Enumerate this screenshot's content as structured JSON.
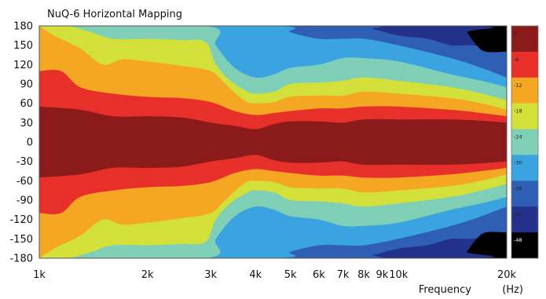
{
  "chart_data": {
    "type": "heatmap",
    "title": "NuQ-6 Horizontal Mapping",
    "xlabel": "Frequency",
    "xlabel_unit": "(Hz)",
    "x_scale": "log",
    "xlim": [
      1000,
      20000
    ],
    "ylim": [
      -180,
      180
    ],
    "x_ticks": [
      {
        "value": 1000,
        "label": "1k"
      },
      {
        "value": 2000,
        "label": "2k"
      },
      {
        "value": 3000,
        "label": "3k"
      },
      {
        "value": 4000,
        "label": "4k"
      },
      {
        "value": 5000,
        "label": "5k"
      },
      {
        "value": 6000,
        "label": "6k"
      },
      {
        "value": 7000,
        "label": "7k"
      },
      {
        "value": 8000,
        "label": "8k"
      },
      {
        "value": 9000,
        "label": "9k"
      },
      {
        "value": 10000,
        "label": "10k"
      },
      {
        "value": 20000,
        "label": "20k"
      }
    ],
    "y_ticks": [
      180,
      150,
      120,
      90,
      60,
      30,
      0,
      -30,
      -60,
      -90,
      -120,
      -150,
      -180
    ],
    "colorbar": [
      {
        "label": "0",
        "color": "#8b1a1a"
      },
      {
        "label": "-6",
        "color": "#e8302a"
      },
      {
        "label": "-12",
        "color": "#f5a623"
      },
      {
        "label": "-18",
        "color": "#d4e03a"
      },
      {
        "label": "-24",
        "color": "#7fcfb7"
      },
      {
        "label": "-30",
        "color": "#3aa3e0"
      },
      {
        "label": "-36",
        "color": "#2f5fb4"
      },
      {
        "label": "-42",
        "color": "#23318a"
      },
      {
        "label": "-48",
        "color": "#000000"
      }
    ],
    "contours": [
      {
        "level": -6,
        "color": "#e8302a",
        "points": [
          [
            1000,
            55
          ],
          [
            1300,
            50
          ],
          [
            1600,
            40
          ],
          [
            2000,
            40
          ],
          [
            2500,
            38
          ],
          [
            3000,
            30
          ],
          [
            3500,
            25
          ],
          [
            4000,
            20
          ],
          [
            4500,
            28
          ],
          [
            5000,
            32
          ],
          [
            6000,
            32
          ],
          [
            7000,
            30
          ],
          [
            8000,
            35
          ],
          [
            10000,
            35
          ],
          [
            14000,
            35
          ],
          [
            17000,
            33
          ],
          [
            20000,
            30
          ]
        ]
      },
      {
        "level": -12,
        "color": "#f5a623",
        "points": [
          [
            1000,
            110
          ],
          [
            1150,
            110
          ],
          [
            1300,
            85
          ],
          [
            1600,
            75
          ],
          [
            2000,
            70
          ],
          [
            2500,
            68
          ],
          [
            3000,
            62
          ],
          [
            3500,
            48
          ],
          [
            4000,
            42
          ],
          [
            4500,
            45
          ],
          [
            5000,
            48
          ],
          [
            6000,
            52
          ],
          [
            7000,
            52
          ],
          [
            8000,
            55
          ],
          [
            10000,
            55
          ],
          [
            14000,
            50
          ],
          [
            17000,
            45
          ],
          [
            20000,
            40
          ]
        ]
      },
      {
        "level": -18,
        "color": "#d4e03a",
        "points": [
          [
            1000,
            180
          ],
          [
            1100,
            165
          ],
          [
            1300,
            145
          ],
          [
            1500,
            120
          ],
          [
            1700,
            128
          ],
          [
            2000,
            125
          ],
          [
            2500,
            118
          ],
          [
            3000,
            110
          ],
          [
            3300,
            90
          ],
          [
            3700,
            65
          ],
          [
            4000,
            60
          ],
          [
            4500,
            62
          ],
          [
            5000,
            70
          ],
          [
            6000,
            72
          ],
          [
            7000,
            72
          ],
          [
            8000,
            78
          ],
          [
            10000,
            75
          ],
          [
            14000,
            68
          ],
          [
            17000,
            60
          ],
          [
            20000,
            50
          ]
        ]
      },
      {
        "level": -24,
        "color": "#7fcfb7",
        "points": [
          [
            1000,
            180
          ],
          [
            1200,
            180
          ],
          [
            1400,
            170
          ],
          [
            1600,
            160
          ],
          [
            2000,
            160
          ],
          [
            2500,
            158
          ],
          [
            2900,
            155
          ],
          [
            3100,
            120
          ],
          [
            3400,
            95
          ],
          [
            3800,
            78
          ],
          [
            4000,
            75
          ],
          [
            4500,
            78
          ],
          [
            5000,
            90
          ],
          [
            6000,
            92
          ],
          [
            7000,
            95
          ],
          [
            8000,
            100
          ],
          [
            10000,
            95
          ],
          [
            14000,
            85
          ],
          [
            17000,
            75
          ],
          [
            20000,
            65
          ]
        ]
      },
      {
        "level": -30,
        "color": "#3aa3e0",
        "points": [
          [
            1000,
            180
          ],
          [
            2900,
            180
          ],
          [
            3100,
            150
          ],
          [
            3500,
            115
          ],
          [
            4000,
            100
          ],
          [
            4500,
            105
          ],
          [
            5000,
            115
          ],
          [
            6000,
            120
          ],
          [
            7000,
            130
          ],
          [
            8000,
            130
          ],
          [
            10000,
            125
          ],
          [
            14000,
            105
          ],
          [
            17000,
            95
          ],
          [
            20000,
            85
          ]
        ]
      },
      {
        "level": -36,
        "color": "#2f5fb4",
        "points": [
          [
            1000,
            180
          ],
          [
            4500,
            180
          ],
          [
            5000,
            170
          ],
          [
            6000,
            160
          ],
          [
            7000,
            160
          ],
          [
            8000,
            160
          ],
          [
            10000,
            150
          ],
          [
            14000,
            130
          ],
          [
            17000,
            115
          ],
          [
            20000,
            100
          ]
        ]
      },
      {
        "level": -42,
        "color": "#23318a",
        "points": [
          [
            1000,
            180
          ],
          [
            7500,
            180
          ],
          [
            8500,
            175
          ],
          [
            10000,
            165
          ],
          [
            12000,
            160
          ],
          [
            14000,
            150
          ],
          [
            16000,
            150
          ],
          [
            18000,
            145
          ],
          [
            20000,
            145
          ]
        ]
      },
      {
        "level": -48,
        "color": "#000000",
        "points": [
          [
            1000,
            180
          ],
          [
            15000,
            180
          ],
          [
            15500,
            170
          ],
          [
            16500,
            150
          ],
          [
            17500,
            140
          ],
          [
            20000,
            140
          ]
        ]
      }
    ]
  }
}
